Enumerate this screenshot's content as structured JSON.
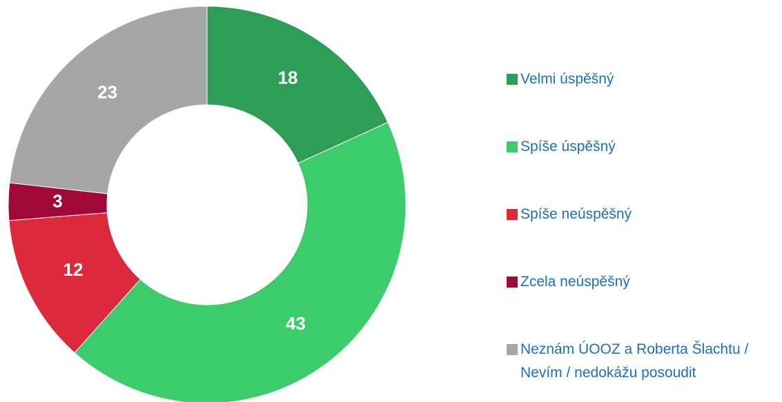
{
  "chart_data": {
    "type": "donut",
    "categories": [
      "Velmi úspěšný",
      "Spíše úspěšný",
      "Spíše neúspěšný",
      "Zcela neúspěšný",
      "Neznám ÚOOZ a Roberta Šlachtu / Nevím / nedokážu posoudit"
    ],
    "values": [
      18,
      43,
      12,
      3,
      23
    ],
    "colors": [
      "#2e9e57",
      "#3dcc6c",
      "#dc2a3c",
      "#a0083a",
      "#a6a6a6"
    ],
    "legend": "right"
  }
}
